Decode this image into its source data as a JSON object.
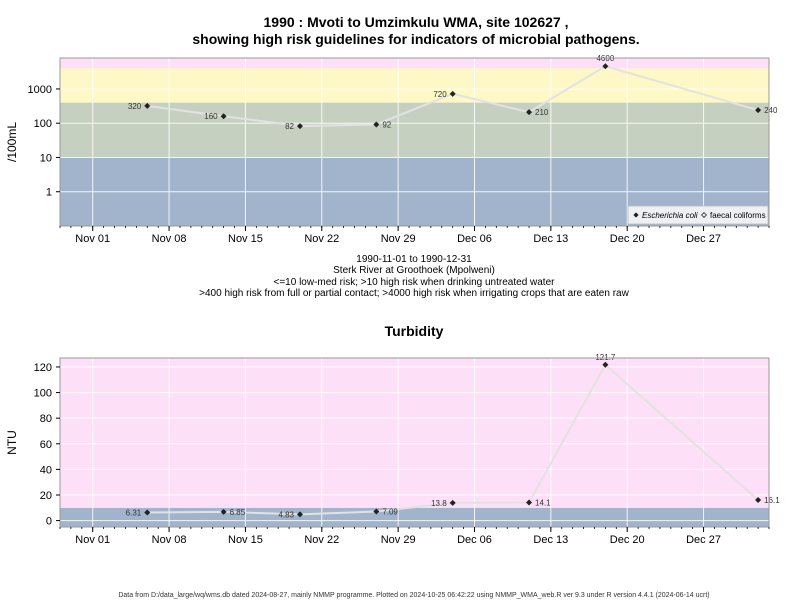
{
  "chart_data": [
    {
      "type": "line",
      "title_lines": [
        "1990 : Mvoti to Umzimkulu WMA, site 102627 ,",
        "showing high risk guidelines for indicators of microbial pathogens."
      ],
      "ylabel": "/100mL",
      "yscale": "log",
      "ylim": [
        0.1,
        8000
      ],
      "yticks": [
        1,
        10,
        100,
        1000
      ],
      "ytick_labels": [
        "1",
        "10",
        "100",
        "1000"
      ],
      "xlim": [
        "1990-10-29",
        "1991-01-02"
      ],
      "xticks": [
        "1990-11-01",
        "1990-11-08",
        "1990-11-15",
        "1990-11-22",
        "1990-11-29",
        "1990-12-06",
        "1990-12-13",
        "1990-12-20",
        "1990-12-27"
      ],
      "xtick_labels": [
        "Nov 01",
        "Nov 08",
        "Nov 15",
        "Nov 22",
        "Nov 29",
        "Dec 06",
        "Dec 13",
        "Dec 20",
        "Dec 27"
      ],
      "bands": [
        {
          "from": 0.1,
          "to": 10,
          "color": "#a1b4cb"
        },
        {
          "from": 10,
          "to": 400,
          "color": "#c6d0c1"
        },
        {
          "from": 400,
          "to": 4000,
          "color": "#fdf8c6"
        },
        {
          "from": 4000,
          "to": 8000,
          "color": "#fde0f7"
        }
      ],
      "series": [
        {
          "name": "Escherichia coli",
          "x": [
            "1990-11-06",
            "1990-11-13",
            "1990-11-20",
            "1990-11-27",
            "1990-12-04",
            "1990-12-11",
            "1990-12-18",
            "1991-01-01"
          ],
          "y": [
            320,
            160,
            82,
            92,
            720,
            210,
            4600,
            240
          ],
          "labels": [
            "320",
            "160",
            "82",
            "92",
            "720",
            "210",
            "4600",
            "240"
          ]
        },
        {
          "name": "faecal coliforms",
          "x": [],
          "y": []
        }
      ],
      "legend": {
        "position": "bottom-right",
        "entries": [
          "Escherichia coli",
          "faecal coliforms"
        ]
      },
      "grid": true,
      "caption_lines": [
        "1990-11-01 to 1990-12-31",
        "Sterk River at Groothoek (Mpolweni)",
        "<=10 low-med risk; >10 high risk when drinking untreated water",
        ">400 high risk from full or partial contact; >4000 high risk when irrigating crops that are eaten raw"
      ]
    },
    {
      "type": "line",
      "title": "Turbidity",
      "ylabel": "NTU",
      "ylim": [
        -5,
        127
      ],
      "yticks": [
        0,
        20,
        40,
        60,
        80,
        100,
        120
      ],
      "ytick_labels": [
        "0",
        "20",
        "40",
        "60",
        "80",
        "100",
        "120"
      ],
      "xlim": [
        "1990-10-29",
        "1991-01-02"
      ],
      "xticks": [
        "1990-11-01",
        "1990-11-08",
        "1990-11-15",
        "1990-11-22",
        "1990-11-29",
        "1990-12-06",
        "1990-12-13",
        "1990-12-20",
        "1990-12-27"
      ],
      "xtick_labels": [
        "Nov 01",
        "Nov 08",
        "Nov 15",
        "Nov 22",
        "Nov 29",
        "Dec 06",
        "Dec 13",
        "Dec 20",
        "Dec 27"
      ],
      "bands": [
        {
          "from": -5,
          "to": 10,
          "color": "#a1b4cb"
        },
        {
          "from": 10,
          "to": 127,
          "color": "#fde0f7"
        }
      ],
      "series": [
        {
          "x": [
            "1990-11-06",
            "1990-11-13",
            "1990-11-20",
            "1990-11-27",
            "1990-12-04",
            "1990-12-11",
            "1990-12-18",
            "1991-01-01"
          ],
          "y": [
            6.31,
            6.85,
            4.83,
            7.09,
            13.8,
            14.1,
            121.7,
            16.1
          ],
          "labels": [
            "6.31",
            "6.85",
            "4.83",
            "7.09",
            "13.8",
            "14.1",
            "121.7",
            "16.1"
          ]
        }
      ],
      "grid": true
    }
  ],
  "footer": "Data from D:/data_large/wq/wms.db dated 2024-08-27, mainly NMMP programme. Plotted on 2024-10-25 06:42:22 using NMMP_WMA_web.R ver 9.3 under R version 4.4.1 (2024-06-14 ucrt)"
}
